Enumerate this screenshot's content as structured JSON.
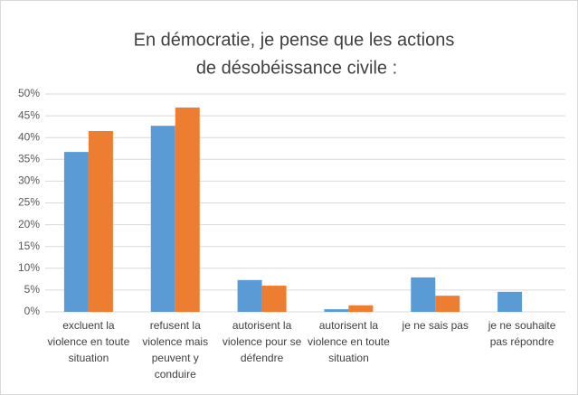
{
  "chart_data": {
    "type": "bar",
    "title": [
      "En démocratie, je pense que les actions",
      "de désobéissance civile :"
    ],
    "categories": [
      "excluent la violence en toute situation",
      "refusent la violence mais peuvent y conduire",
      "autorisent la violence pour se défendre",
      "autorisent la violence en toute situation",
      "je ne sais pas",
      "je ne souhaite pas répondre"
    ],
    "series": [
      {
        "color": "#5b9bd5",
        "values": [
          36.7,
          42.7,
          7.3,
          0.6,
          7.9,
          4.6
        ]
      },
      {
        "color": "#ed7d31",
        "values": [
          41.5,
          46.9,
          6.0,
          1.5,
          3.7,
          0
        ]
      }
    ],
    "ylim": [
      0,
      50
    ],
    "yticks": [
      {
        "value": 0,
        "label": "0%"
      },
      {
        "value": 5,
        "label": "5%"
      },
      {
        "value": 10,
        "label": "10%"
      },
      {
        "value": 15,
        "label": "15%"
      },
      {
        "value": 20,
        "label": "20%"
      },
      {
        "value": 25,
        "label": "25%"
      },
      {
        "value": 30,
        "label": "30%"
      },
      {
        "value": 35,
        "label": "35%"
      },
      {
        "value": 40,
        "label": "40%"
      },
      {
        "value": 45,
        "label": "45%"
      },
      {
        "value": 50,
        "label": "50%"
      }
    ],
    "grid": true
  }
}
